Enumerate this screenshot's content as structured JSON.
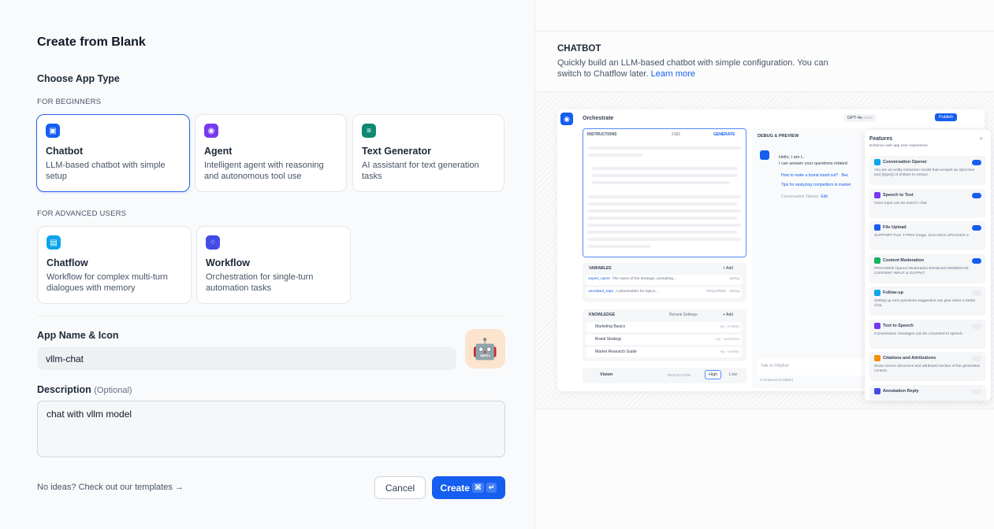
{
  "left": {
    "title": "Create from Blank",
    "choose_label": "Choose App Type",
    "beginners_label": "FOR BEGINNERS",
    "advanced_label": "FOR ADVANCED USERS",
    "beginner_types": [
      {
        "title": "Chatbot",
        "desc": "LLM-based chatbot with simple setup",
        "color": "#155eef",
        "selected": true
      },
      {
        "title": "Agent",
        "desc": "Intelligent agent with reasoning and autonomous tool use",
        "color": "#7839ee"
      },
      {
        "title": "Text Generator",
        "desc": "AI assistant for text generation tasks",
        "color": "#0e8a71"
      }
    ],
    "advanced_types": [
      {
        "title": "Chatflow",
        "desc": "Workflow for complex multi-turn dialogues with memory",
        "color": "#0ba5ec"
      },
      {
        "title": "Workflow",
        "desc": "Orchestration for single-turn automation tasks",
        "color": "#444ce7"
      }
    ],
    "name_label": "App Name & Icon",
    "name_value": "vllm-chat",
    "app_icon": "🤖",
    "desc_label": "Description",
    "desc_optional": "(Optional)",
    "desc_value": "chat with vllm model",
    "templates_link": "No ideas? Check out our templates",
    "cancel": "Cancel",
    "create": "Create",
    "create_kbd": [
      "⌘",
      "↵"
    ]
  },
  "right": {
    "title": "CHATBOT",
    "desc": "Quickly build an LLM-based chatbot with simple configuration. You can switch to Chatflow later.",
    "learn_more": "Learn more",
    "preview": {
      "orchestrate": "Orchestrate",
      "model": "GPT-4o",
      "model_tag": "CHAT",
      "publish": "Publish",
      "instructions": "INSTRUCTIONS",
      "count": "2182",
      "generate": "GENERATE",
      "variables": "VARIABLES",
      "add": "+ Add",
      "vars": [
        {
          "name": "expert_name",
          "desc": "The name of the strategic consulting...",
          "type": "String"
        },
        {
          "name": "unrelated_topic",
          "desc": "A placeholder for topics...",
          "req": "REQUIRED",
          "type": "String"
        }
      ],
      "knowledge": "KNOWLEDGE",
      "rerank": "Rerank Settings",
      "docs": [
        {
          "name": "Marketing Basics",
          "tag": "HQ · HYBRID"
        },
        {
          "name": "Brand Strategy",
          "tag": "HQ · INVERTED"
        },
        {
          "name": "Market Research Guide",
          "tag": "HQ · HYBRID"
        }
      ],
      "vision": "Vision",
      "resolution": "RESOLUTION",
      "high": "High",
      "low": "Low",
      "debug": "DEBUG & PREVIEW",
      "greeting1": "Hello, I am L.",
      "greeting2": "I can answer your questions related",
      "q1": "How to make a brand stand out?",
      "q1b": "Bes",
      "q2": "Tips for analyzing competitors in market",
      "opener": "Conversation Opener",
      "edit": "Edit",
      "talk_placeholder": "Talk to DifyBot",
      "features_enabled": "4 Features Enabled",
      "features_title": "Features",
      "features_sub": "Enhance web app user experience",
      "features": [
        {
          "title": "Conversation Opener",
          "desc": "You are an entity extraction model that accepts an input text and {{type}} of entities to extract.",
          "on": true,
          "color": "#0ba5ec"
        },
        {
          "title": "Speech to Text",
          "desc": "Voice input can be used in chat.",
          "on": true,
          "color": "#7839ee"
        },
        {
          "title": "File Upload",
          "desc": "SUPPORT FILE TYPES  Image, Docs   MAX UPLOADS 3",
          "on": true,
          "color": "#155eef"
        },
        {
          "title": "Content Moderation",
          "desc": "PROVIDER OpenAI Moderation   ENABLED MODERATE CONTENT INPUT & OUTPUT",
          "on": true,
          "color": "#16b364"
        },
        {
          "title": "Follow-up",
          "desc": "Setting up next questions suggestion can give users a better chat.",
          "on": false,
          "color": "#0ba5ec"
        },
        {
          "title": "Text to Speech",
          "desc": "Conversation messages can be converted to speech.",
          "on": false,
          "color": "#7839ee"
        },
        {
          "title": "Citations and Attributions",
          "desc": "Show source document and attributed section of the generated content.",
          "on": false,
          "color": "#f79009"
        },
        {
          "title": "Annotation Reply",
          "desc": "",
          "on": false,
          "color": "#444ce7"
        }
      ]
    }
  }
}
